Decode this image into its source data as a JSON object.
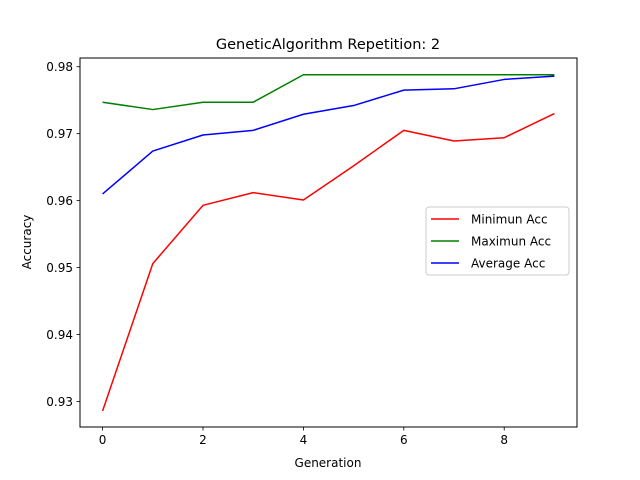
{
  "chart_data": {
    "type": "line",
    "title": "GeneticAlgorithm Repetition: 2",
    "xlabel": "Generation",
    "ylabel": "Accuracy",
    "x": [
      0,
      1,
      2,
      3,
      4,
      5,
      6,
      7,
      8,
      9
    ],
    "xlim": [
      -0.45,
      9.45
    ],
    "ylim": [
      0.9262,
      0.9813
    ],
    "xticks": [
      0,
      2,
      4,
      6,
      8
    ],
    "yticks": [
      0.93,
      0.94,
      0.95,
      0.96,
      0.97,
      0.98
    ],
    "ytick_labels": [
      "0.93",
      "0.94",
      "0.95",
      "0.96",
      "0.97",
      "0.98"
    ],
    "grid": false,
    "legend_position": "center-right",
    "series": [
      {
        "name": "Minimun Acc",
        "color": "#ff0000",
        "values": [
          0.9286,
          0.9506,
          0.9593,
          0.9612,
          0.9601,
          0.9652,
          0.9705,
          0.9689,
          0.9694,
          0.973
        ]
      },
      {
        "name": "Maximun Acc",
        "color": "#008000",
        "values": [
          0.9747,
          0.9736,
          0.9747,
          0.9747,
          0.9788,
          0.9788,
          0.9788,
          0.9788,
          0.9788,
          0.9788
        ]
      },
      {
        "name": "Average Acc",
        "color": "#0000ff",
        "values": [
          0.961,
          0.9674,
          0.9698,
          0.9705,
          0.9729,
          0.9742,
          0.9765,
          0.9767,
          0.9781,
          0.9786
        ]
      }
    ]
  }
}
